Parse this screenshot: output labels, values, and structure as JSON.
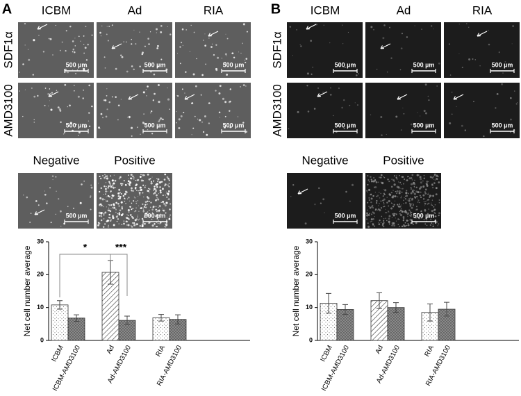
{
  "panels": [
    {
      "label": "A",
      "columns": [
        "ICBM",
        "Ad",
        "RIA"
      ],
      "rows": [
        "SDF1α",
        "AMD3100"
      ],
      "controls": [
        "Negative",
        "Positive"
      ],
      "scale_bar": "500 µm"
    },
    {
      "label": "B",
      "columns": [
        "ICBM",
        "Ad",
        "RIA"
      ],
      "rows": [
        "SDF1α",
        "AMD3100"
      ],
      "controls": [
        "Negative",
        "Positive"
      ],
      "scale_bar": "500 µm"
    }
  ],
  "chart_data": [
    {
      "type": "bar",
      "ylabel": "Net cell number average",
      "categories": [
        "ICBM",
        "ICBM-AMD3100",
        "Ad",
        "Ad-AMD3100",
        "RIA",
        "RIA-AMD3100"
      ],
      "values": [
        10.8,
        6.8,
        20.7,
        6.1,
        6.9,
        6.4
      ],
      "errors": [
        1.3,
        1.0,
        3.6,
        1.3,
        1.0,
        1.4
      ],
      "patterns": [
        "dots-light",
        "dots-dark",
        "hatch",
        "dots-dark",
        "dots-light",
        "dots-dark"
      ],
      "ylim": [
        0,
        30
      ],
      "yticks": [
        0,
        10,
        20,
        30
      ],
      "annotations": [
        "*",
        "***"
      ]
    },
    {
      "type": "bar",
      "ylabel": "Net cell number average",
      "categories": [
        "ICBM",
        "ICBM-AMD3100",
        "Ad",
        "Ad-AMD3100",
        "RIA",
        "RIA-AMD3100"
      ],
      "values": [
        11.3,
        9.4,
        12.1,
        10.0,
        8.5,
        9.5
      ],
      "errors": [
        3.0,
        1.5,
        2.4,
        1.5,
        2.6,
        2.1
      ],
      "patterns": [
        "dots-light",
        "dots-dark",
        "hatch",
        "dots-dark",
        "dots-light",
        "dots-dark"
      ],
      "ylim": [
        0,
        30
      ],
      "yticks": [
        0,
        10,
        20,
        30
      ]
    }
  ]
}
